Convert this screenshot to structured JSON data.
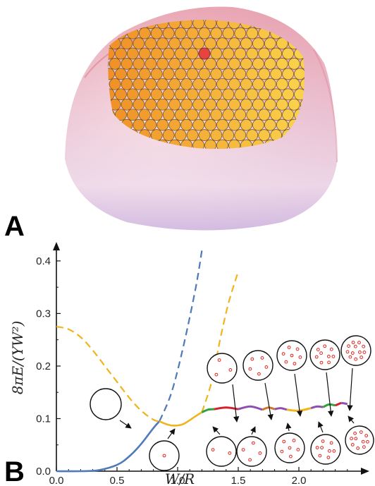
{
  "panels": {
    "a_label": "A",
    "b_label": "B"
  },
  "chart_data": {
    "type": "line",
    "xlabel": "W/R",
    "ylabel": "8πE/(YW²)",
    "xlim": [
      0,
      2.5
    ],
    "ylim": [
      0,
      0.42
    ],
    "xticks": [
      "0.0",
      "0.5",
      "1.0",
      "1.5",
      "2.0"
    ],
    "yticks": [
      "0.0",
      "0.1",
      "0.2",
      "0.3",
      "0.4"
    ],
    "series": [
      {
        "color": "#4f79b8",
        "solid": {
          "x": [
            0.0,
            0.2,
            0.35,
            0.5,
            0.6,
            0.7,
            0.8,
            0.85
          ],
          "y": [
            0.0,
            0.0,
            0.002,
            0.012,
            0.028,
            0.052,
            0.082,
            0.095
          ]
        },
        "dashed": {
          "x": [
            0.85,
            0.95,
            1.05,
            1.15,
            1.2
          ],
          "y": [
            0.095,
            0.15,
            0.24,
            0.35,
            0.42
          ]
        }
      },
      {
        "color": "#f0b41c",
        "dashed": {
          "x": [
            0.0,
            0.1,
            0.2,
            0.3,
            0.4,
            0.5,
            0.6,
            0.7,
            0.8,
            0.85
          ],
          "y": [
            0.275,
            0.27,
            0.255,
            0.23,
            0.2,
            0.17,
            0.14,
            0.115,
            0.098,
            0.095
          ]
        },
        "solid": {
          "x": [
            0.85,
            0.9,
            0.95,
            1.0,
            1.05,
            1.1,
            1.15,
            1.2
          ],
          "y": [
            0.095,
            0.09,
            0.087,
            0.087,
            0.09,
            0.097,
            0.105,
            0.112
          ]
        },
        "dashed2": {
          "x": [
            1.2,
            1.28,
            1.35,
            1.42,
            1.5
          ],
          "y": [
            0.112,
            0.17,
            0.25,
            0.32,
            0.38
          ]
        }
      }
    ],
    "branches": [
      {
        "color": "#2ea33b",
        "x": [
          1.2,
          1.25,
          1.3
        ],
        "y": [
          0.112,
          0.117,
          0.118
        ]
      },
      {
        "color": "#d4212b",
        "x": [
          1.3,
          1.4,
          1.5
        ],
        "y": [
          0.118,
          0.121,
          0.118
        ]
      },
      {
        "color": "#8e4fb0",
        "x": [
          1.5,
          1.6,
          1.7
        ],
        "y": [
          0.118,
          0.123,
          0.117
        ]
      },
      {
        "color": "#d4752a",
        "x": [
          1.7,
          1.75,
          1.8
        ],
        "y": [
          0.117,
          0.121,
          0.118
        ]
      },
      {
        "color": "#8e4fb0",
        "x": [
          1.8,
          1.85,
          1.9
        ],
        "y": [
          0.118,
          0.12,
          0.117
        ]
      },
      {
        "color": "#f0b41c",
        "x": [
          1.9,
          2.0,
          2.1
        ],
        "y": [
          0.117,
          0.115,
          0.12
        ]
      },
      {
        "color": "#8e4fb0",
        "x": [
          2.1,
          2.15,
          2.2
        ],
        "y": [
          0.12,
          0.123,
          0.122
        ]
      },
      {
        "color": "#2ea33b",
        "x": [
          2.2,
          2.25,
          2.3
        ],
        "y": [
          0.122,
          0.127,
          0.125
        ]
      },
      {
        "color": "#d4212b",
        "x": [
          2.3,
          2.35
        ],
        "y": [
          0.125,
          0.13
        ]
      },
      {
        "color": "#8e4fb0",
        "x": [
          2.35,
          2.4
        ],
        "y": [
          0.13,
          0.128
        ]
      }
    ],
    "insets": [
      {
        "dots": 0
      },
      {
        "dots": 1
      },
      {
        "dots": 2
      },
      {
        "dots": 3
      },
      {
        "dots": 4
      },
      {
        "dots": 5
      },
      {
        "dots": 6
      },
      {
        "dots": 7
      },
      {
        "dots": 8
      },
      {
        "dots": 9
      },
      {
        "dots": 10
      },
      {
        "dots": 12
      }
    ]
  }
}
